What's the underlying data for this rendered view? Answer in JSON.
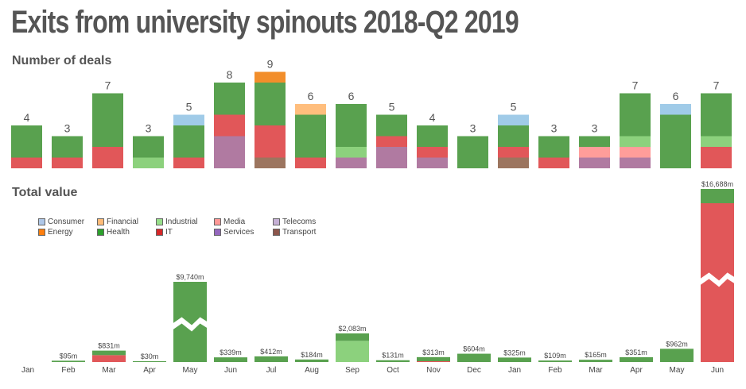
{
  "title": "Exits from university spinouts 2018-Q2 2019",
  "chart_data": [
    {
      "type": "bar",
      "stacked": true,
      "title": "Number of deals",
      "categories": [
        "Jan",
        "Feb",
        "Mar",
        "Apr",
        "May",
        "Jun",
        "Jul",
        "Aug",
        "Sep",
        "Oct",
        "Nov",
        "Dec",
        "Jan",
        "Feb",
        "Mar",
        "Apr",
        "May",
        "Jun"
      ],
      "totals": [
        4,
        3,
        7,
        3,
        5,
        8,
        9,
        6,
        6,
        5,
        4,
        3,
        5,
        3,
        3,
        7,
        6,
        7
      ],
      "series": [
        {
          "name": "Transport",
          "values": [
            0,
            0,
            0,
            0,
            0,
            0,
            1,
            0,
            0,
            0,
            0,
            0,
            1,
            0,
            0,
            0,
            0,
            0
          ]
        },
        {
          "name": "Telecoms",
          "values": [
            0,
            0,
            0,
            0,
            0,
            3,
            0,
            0,
            1,
            2,
            1,
            0,
            0,
            0,
            1,
            1,
            0,
            0
          ]
        },
        {
          "name": "IT",
          "values": [
            1,
            1,
            2,
            0,
            1,
            2,
            3,
            1,
            0,
            1,
            1,
            0,
            1,
            1,
            0,
            0,
            0,
            2
          ]
        },
        {
          "name": "Media",
          "values": [
            0,
            0,
            0,
            0,
            0,
            0,
            0,
            0,
            0,
            0,
            0,
            0,
            0,
            0,
            1,
            1,
            0,
            0
          ]
        },
        {
          "name": "Industrial",
          "values": [
            0,
            0,
            0,
            1,
            0,
            0,
            0,
            0,
            1,
            0,
            0,
            0,
            0,
            0,
            0,
            1,
            0,
            1
          ]
        },
        {
          "name": "Health",
          "values": [
            3,
            2,
            5,
            2,
            3,
            3,
            4,
            4,
            4,
            2,
            2,
            3,
            2,
            2,
            1,
            4,
            5,
            4
          ]
        },
        {
          "name": "Financial",
          "values": [
            0,
            0,
            0,
            0,
            0,
            0,
            0,
            1,
            0,
            0,
            0,
            0,
            0,
            0,
            0,
            0,
            0,
            0
          ]
        },
        {
          "name": "Energy",
          "values": [
            0,
            0,
            0,
            0,
            0,
            0,
            1,
            0,
            0,
            0,
            0,
            0,
            0,
            0,
            0,
            0,
            0,
            0
          ]
        },
        {
          "name": "Consumer",
          "values": [
            0,
            0,
            0,
            0,
            1,
            0,
            0,
            0,
            0,
            0,
            0,
            0,
            1,
            0,
            0,
            0,
            1,
            0
          ]
        }
      ],
      "ylim": [
        0,
        9
      ]
    },
    {
      "type": "bar",
      "stacked": true,
      "title": "Total value",
      "unit": "$m",
      "categories": [
        "Jan",
        "Feb",
        "Mar",
        "Apr",
        "May",
        "Jun",
        "Jul",
        "Aug",
        "Sep",
        "Oct",
        "Nov",
        "Dec",
        "Jan",
        "Feb",
        "Mar",
        "Apr",
        "May",
        "Jun"
      ],
      "totals": [
        0,
        95,
        831,
        30,
        9740,
        339,
        412,
        184,
        2083,
        131,
        313,
        604,
        325,
        109,
        165,
        351,
        962,
        16688
      ],
      "labels": [
        "",
        "$95m",
        "$831m",
        "$30m",
        "$9,740m",
        "$339m",
        "$412m",
        "$184m",
        "$2,083m",
        "$131m",
        "$313m",
        "$604m",
        "$325m",
        "$109m",
        "$165m",
        "$351m",
        "$962m",
        "$16,688m"
      ],
      "series": [
        {
          "name": "IT",
          "values": [
            0,
            0,
            500,
            0,
            0,
            0,
            0,
            0,
            0,
            0,
            15,
            0,
            0,
            0,
            0,
            0,
            0,
            15700
          ]
        },
        {
          "name": "Industrial",
          "values": [
            0,
            0,
            0,
            0,
            0,
            0,
            0,
            0,
            1540,
            0,
            0,
            0,
            0,
            0,
            0,
            0,
            0,
            0
          ]
        },
        {
          "name": "Health",
          "values": [
            0,
            95,
            331,
            30,
            9740,
            339,
            412,
            184,
            543,
            131,
            298,
            604,
            325,
            109,
            165,
            351,
            962,
            988
          ]
        }
      ],
      "axis_breaks": [
        "May",
        "Jun"
      ]
    }
  ],
  "legend": [
    {
      "name": "Consumer",
      "color": "#aec7e8"
    },
    {
      "name": "Financial",
      "color": "#ffbb78"
    },
    {
      "name": "Industrial",
      "color": "#98df8a"
    },
    {
      "name": "Media",
      "color": "#ff9896"
    },
    {
      "name": "Telecoms",
      "color": "#c5b0d5"
    },
    {
      "name": "Energy",
      "color": "#ff7f0e"
    },
    {
      "name": "Health",
      "color": "#2ca02c"
    },
    {
      "name": "IT",
      "color": "#d62728"
    },
    {
      "name": "Services",
      "color": "#9467bd"
    },
    {
      "name": "Transport",
      "color": "#8c564b"
    }
  ],
  "bar_colors": {
    "Consumer": "#a0cbe8",
    "Energy": "#f28e2b",
    "Financial": "#ffbe7d",
    "Health": "#59a14f",
    "Industrial": "#8cd17d",
    "IT": "#e15759",
    "Media": "#ff9d9a",
    "Services": "#9467bd",
    "Telecoms": "#b07aa1",
    "Transport": "#9c755f"
  },
  "text_color": "#555555"
}
